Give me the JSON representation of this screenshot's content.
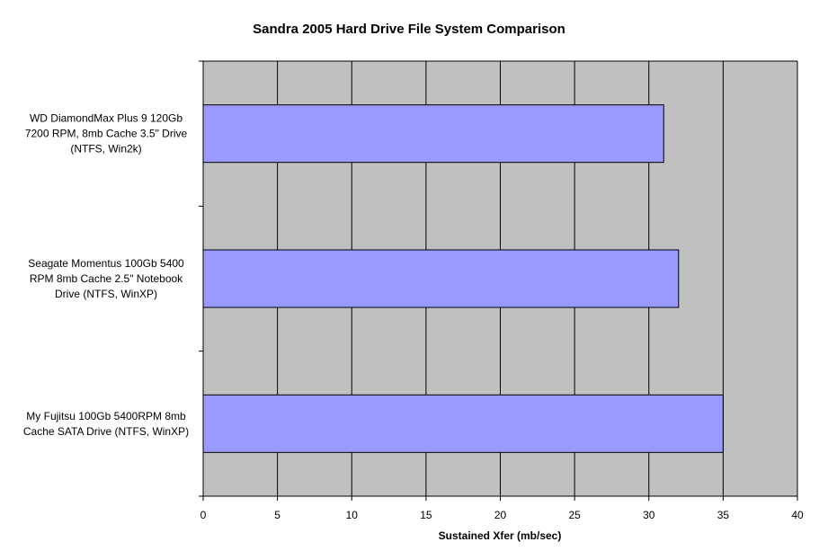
{
  "chart_data": {
    "type": "bar",
    "orientation": "horizontal",
    "title": "Sandra 2005 Hard Drive File System Comparison",
    "xlabel": "Sustained Xfer (mb/sec)",
    "ylabel": "",
    "xlim": [
      0,
      40
    ],
    "xticks": [
      "0",
      "5",
      "10",
      "15",
      "20",
      "25",
      "30",
      "35",
      "40"
    ],
    "grid": true,
    "colors": {
      "bar": "#9999ff",
      "plot_bg": "#c0c0c0",
      "grid": "#000000"
    },
    "categories": [
      [
        "WD DiamondMax Plus 9 120Gb",
        "7200 RPM, 8mb Cache 3.5\" Drive",
        "(NTFS, Win2k)"
      ],
      [
        "Seagate Momentus 100Gb 5400",
        "RPM 8mb Cache 2.5\" Notebook",
        "Drive (NTFS, WinXP)"
      ],
      [
        "My Fujitsu 100Gb 5400RPM 8mb",
        "Cache SATA Drive (NTFS, WinXP)"
      ]
    ],
    "values": [
      31,
      32,
      35
    ]
  }
}
